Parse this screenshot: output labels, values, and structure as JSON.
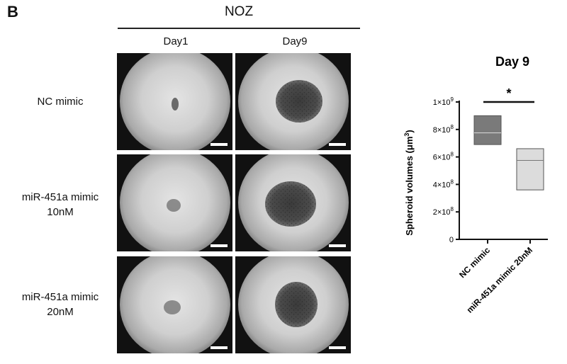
{
  "panel": {
    "letter": "B",
    "group_title": "NOZ",
    "columns": [
      "Day1",
      "Day9"
    ],
    "rows": [
      {
        "line1": "NC mimic",
        "line2": ""
      },
      {
        "line1": "miR-451a mimic",
        "line2": "10nM"
      },
      {
        "line1": "miR-451a mimic",
        "line2": "20nM"
      }
    ],
    "image_descriptions": [
      "well-day1-nc",
      "well-day9-nc",
      "well-day1-10nm",
      "well-day9-10nm",
      "well-day1-20nm",
      "well-day9-20nm"
    ]
  },
  "chart_data": {
    "type": "box",
    "title": "Day 9",
    "ylabel_main": "Spheroid volumes (μm",
    "ylabel_sup": "3",
    "ylabel_tail": ")",
    "ylim": [
      0,
      1000000000
    ],
    "yticks": [
      {
        "value": 0,
        "label": "0",
        "sup": ""
      },
      {
        "value": 200000000,
        "label": "2×10",
        "sup": "8"
      },
      {
        "value": 400000000,
        "label": "4×10",
        "sup": "8"
      },
      {
        "value": 600000000,
        "label": "6×10",
        "sup": "8"
      },
      {
        "value": 800000000,
        "label": "8×10",
        "sup": "8"
      },
      {
        "value": 1000000000,
        "label": "1×10",
        "sup": "9"
      }
    ],
    "categories": [
      "NC mimic",
      "miR-451a mimic 20nM"
    ],
    "boxes": [
      {
        "category": "NC mimic",
        "low": 690000000,
        "median": 775000000,
        "high": 900000000,
        "color": "#7a7a7a"
      },
      {
        "category": "miR-451a mimic 20nM",
        "low": 360000000,
        "median": 575000000,
        "high": 660000000,
        "color": "#dcdcdc"
      }
    ],
    "significance": "*"
  }
}
